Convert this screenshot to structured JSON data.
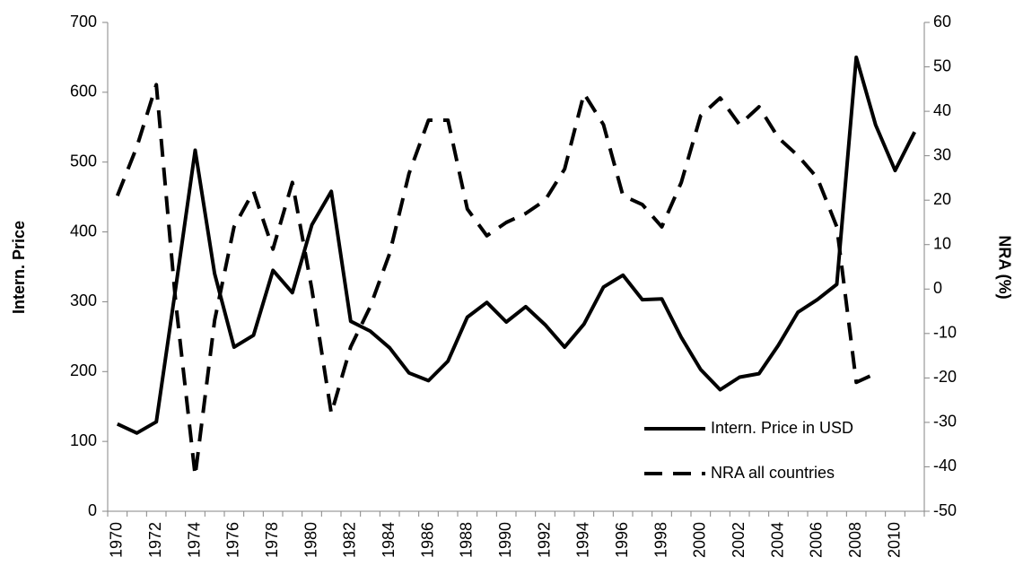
{
  "chart_data": {
    "type": "line",
    "categories": [
      "1970",
      null,
      "1972",
      null,
      "1974",
      null,
      "1976",
      null,
      "1978",
      null,
      "1980",
      null,
      "1982",
      null,
      "1984",
      null,
      "1986",
      null,
      "1988",
      null,
      "1990",
      null,
      "1992",
      null,
      "1994",
      null,
      "1996",
      null,
      "1998",
      null,
      "2000",
      null,
      "2002",
      null,
      "2004",
      null,
      "2006",
      null,
      "2008",
      null,
      "2010",
      null
    ],
    "y_label": "Intern. Price",
    "y2_label": "NRA (%)",
    "ylim": [
      0,
      700
    ],
    "yticks": [
      0,
      100,
      200,
      300,
      400,
      500,
      600,
      700
    ],
    "y2lim": [
      -50,
      60
    ],
    "y2ticks": [
      -50,
      -40,
      -30,
      -20,
      -10,
      0,
      10,
      20,
      30,
      40,
      50,
      60
    ],
    "legend": "lower right",
    "series": [
      {
        "name": "Intern. Price in USD",
        "color": "#000000",
        "dash": false,
        "values": [
          125,
          112,
          128,
          320,
          517,
          340,
          235,
          252,
          345,
          313,
          410,
          458,
          272,
          258,
          234,
          198,
          187,
          215,
          278,
          299,
          271,
          293,
          267,
          235,
          268,
          321,
          338,
          303,
          304,
          249,
          203,
          174,
          192,
          197,
          238,
          285,
          303,
          325,
          650,
          553,
          488,
          543
        ]
      },
      {
        "name": "NRA all countries",
        "color": "#000000",
        "dash": true,
        "axis": "y2",
        "values": [
          21,
          32,
          46,
          -3,
          -42,
          -7,
          14,
          22,
          9,
          24,
          0,
          -28,
          -13,
          -4,
          8,
          26,
          38,
          38,
          18,
          12,
          15,
          17,
          20,
          27,
          44,
          37,
          21,
          19,
          14,
          24,
          39,
          43,
          37,
          41,
          34,
          30,
          25,
          14,
          -21,
          -19,
          null,
          null
        ]
      }
    ]
  }
}
